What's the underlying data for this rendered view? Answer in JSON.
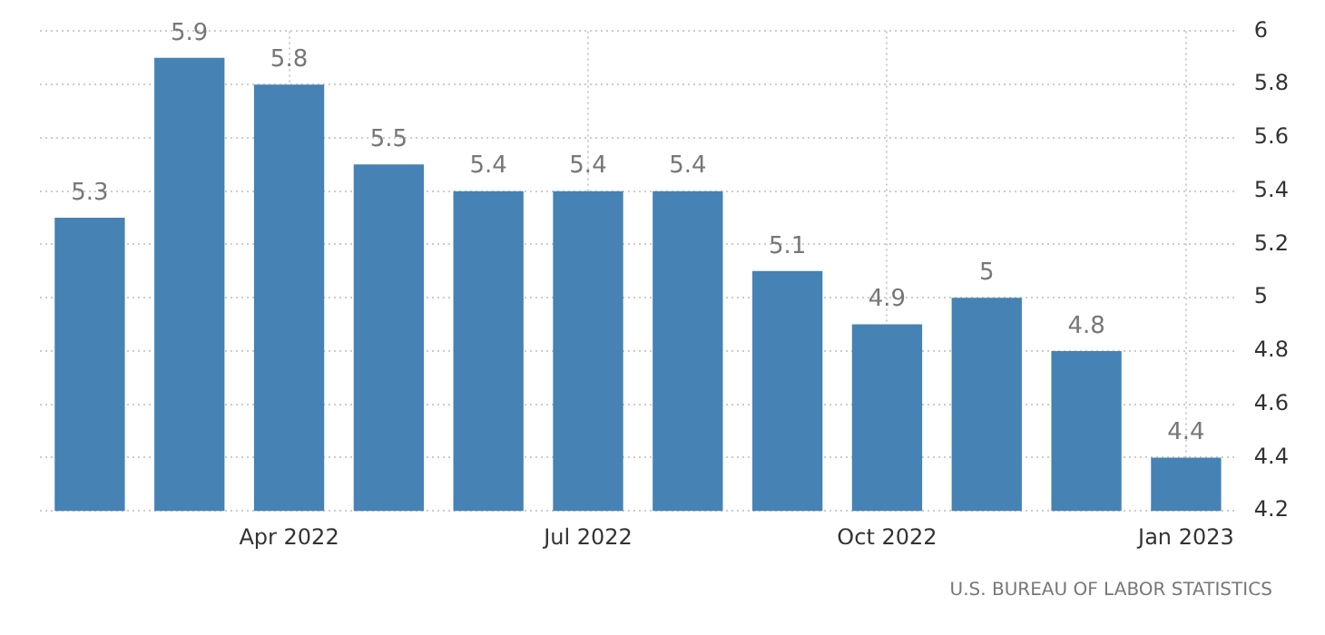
{
  "chart_data": {
    "type": "bar",
    "categories": [
      null,
      null,
      "Apr 2022",
      null,
      null,
      "Jul 2022",
      null,
      null,
      "Oct 2022",
      null,
      null,
      "Jan 2023"
    ],
    "values": [
      5.3,
      5.9,
      5.8,
      5.5,
      5.4,
      5.4,
      5.4,
      5.1,
      4.9,
      5,
      4.8,
      4.4
    ],
    "color": "#4682b4",
    "ylim": [
      4.2,
      6
    ],
    "yticks": [
      4.2,
      4.4,
      4.6,
      4.8,
      5,
      5.2,
      5.4,
      5.6,
      5.8,
      6
    ],
    "grid": true,
    "data_labels": true,
    "annotations": [
      "U.S. BUREAU OF LABOR STATISTICS"
    ]
  }
}
